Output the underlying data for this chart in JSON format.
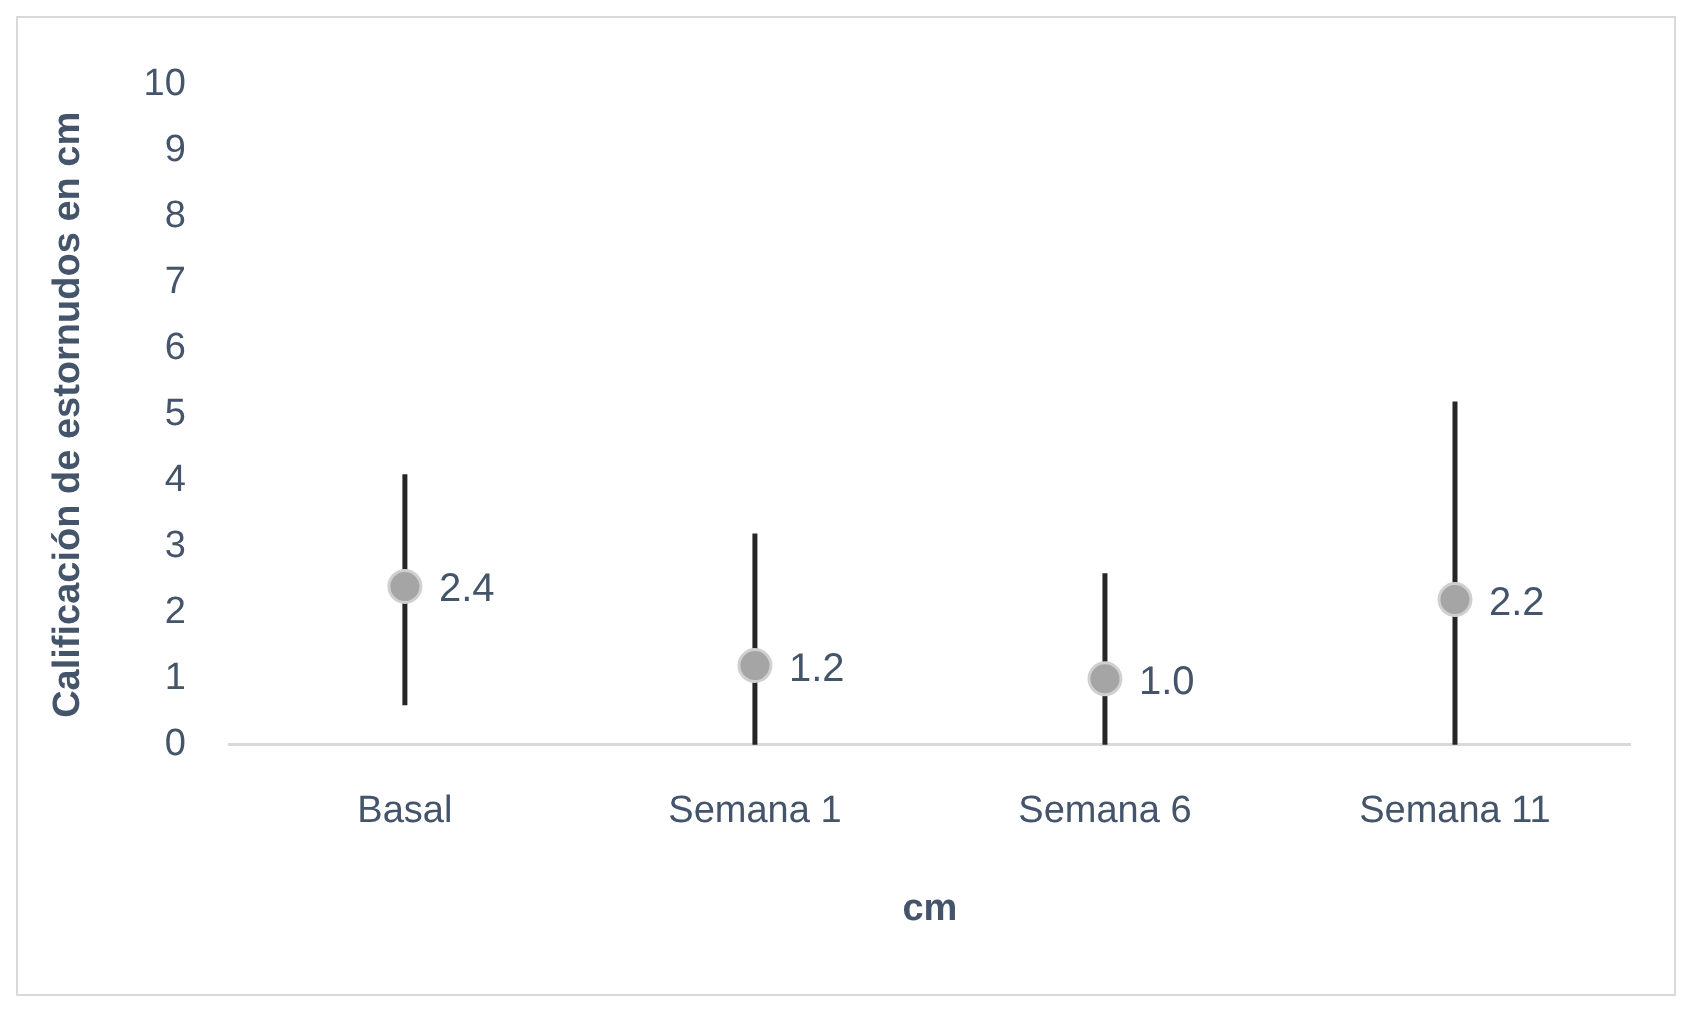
{
  "chart_data": {
    "type": "scatter",
    "xlabel": "cm",
    "ylabel": "Calificación de estornudos en cm",
    "categories": [
      "Basal",
      "Semana 1",
      "Semana 6",
      "Semana 11"
    ],
    "series": [
      {
        "color": "#a5a5a5",
        "values": [
          2.4,
          1.2,
          1.0,
          2.2
        ],
        "value_labels": [
          "2.4",
          "1.2",
          "1.0",
          "2.2"
        ],
        "errors": [
          [
            0.6,
            4.1
          ],
          [
            0,
            3.2
          ],
          [
            0,
            2.6
          ],
          [
            0,
            5.2
          ]
        ]
      }
    ],
    "ylim": [
      0,
      10
    ],
    "yticks": [
      0,
      1,
      2,
      3,
      4,
      5,
      6,
      7,
      8,
      9,
      10
    ],
    "grid": false,
    "legend": false,
    "marker": "circle"
  }
}
